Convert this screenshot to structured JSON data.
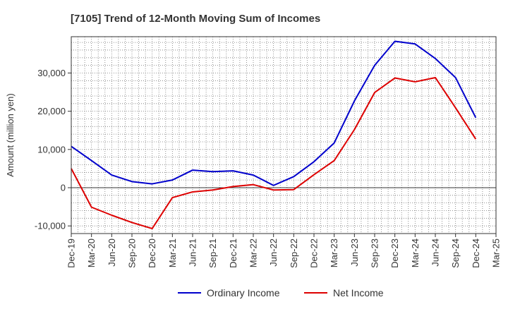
{
  "chart_data": {
    "type": "line",
    "title": "[7105]  Trend of 12-Month Moving Sum of Incomes",
    "xlabel": "",
    "ylabel": "Amount (million yen)",
    "ylim": [
      -12000,
      39500
    ],
    "yticks": [
      -10000,
      0,
      10000,
      20000,
      30000
    ],
    "ytick_labels": [
      "-10,000",
      "0",
      "10,000",
      "20,000",
      "30,000"
    ],
    "categories": [
      "Dec-19",
      "Mar-20",
      "Jun-20",
      "Sep-20",
      "Dec-20",
      "Mar-21",
      "Jun-21",
      "Sep-21",
      "Dec-21",
      "Mar-22",
      "Jun-22",
      "Sep-22",
      "Dec-22",
      "Mar-23",
      "Jun-23",
      "Sep-23",
      "Dec-23",
      "Mar-24",
      "Jun-24",
      "Sep-24",
      "Dec-24",
      "Mar-25"
    ],
    "series": [
      {
        "name": "Ordinary Income",
        "color": "#0000cc",
        "values": [
          10800,
          7100,
          3300,
          1600,
          1000,
          2000,
          4600,
          4200,
          4400,
          3300,
          600,
          2900,
          6800,
          11700,
          22700,
          32000,
          38300,
          37600,
          33800,
          28800,
          18300,
          null
        ]
      },
      {
        "name": "Net Income",
        "color": "#dd0000",
        "values": [
          5000,
          -5100,
          -7200,
          -9100,
          -10700,
          -2600,
          -1100,
          -600,
          300,
          800,
          -600,
          -500,
          3400,
          7100,
          15200,
          24900,
          28700,
          27700,
          28800,
          20900,
          12700,
          null
        ]
      }
    ],
    "grid": true,
    "legend_position": "bottom-center"
  }
}
